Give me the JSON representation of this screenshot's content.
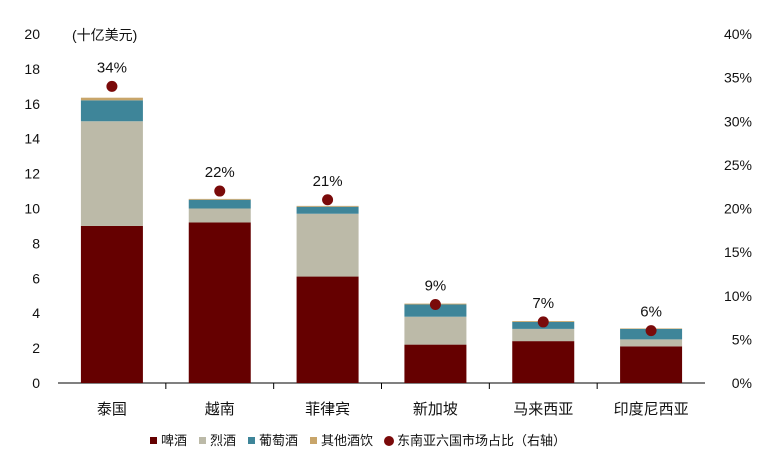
{
  "chart_data": {
    "type": "bar",
    "stacked": true,
    "unit_label": "(十亿美元)",
    "categories": [
      "泰国",
      "越南",
      "菲律宾",
      "新加坡",
      "马来西亚",
      "印度尼西亚"
    ],
    "ylim": [
      0,
      20
    ],
    "yticks": [
      0,
      2,
      4,
      6,
      8,
      10,
      12,
      14,
      16,
      18,
      20
    ],
    "y2lim": [
      0,
      40
    ],
    "y2ticks": [
      "0%",
      "5%",
      "10%",
      "15%",
      "20%",
      "25%",
      "30%",
      "35%",
      "40%"
    ],
    "series": [
      {
        "name": "啤酒",
        "color": "#650000",
        "values": [
          9.0,
          9.2,
          6.1,
          2.2,
          2.4,
          2.1
        ]
      },
      {
        "name": "烈酒",
        "color": "#bcbaa8",
        "values": [
          6.0,
          0.8,
          3.6,
          1.6,
          0.7,
          0.4
        ]
      },
      {
        "name": "葡萄酒",
        "color": "#3e8599",
        "values": [
          1.2,
          0.5,
          0.4,
          0.7,
          0.4,
          0.6
        ]
      },
      {
        "name": "其他酒饮",
        "color": "#c8a56a",
        "values": [
          0.15,
          0.05,
          0.05,
          0.05,
          0.05,
          0.03
        ]
      }
    ],
    "share_series": {
      "name": "东南亚六国市场占比（右轴）",
      "color": "#7a0a0a",
      "values": [
        34,
        22,
        21,
        9,
        7,
        6
      ],
      "labels": [
        "34%",
        "22%",
        "21%",
        "9%",
        "7%",
        "6%"
      ]
    },
    "legend_position": "bottom",
    "grid": false
  }
}
